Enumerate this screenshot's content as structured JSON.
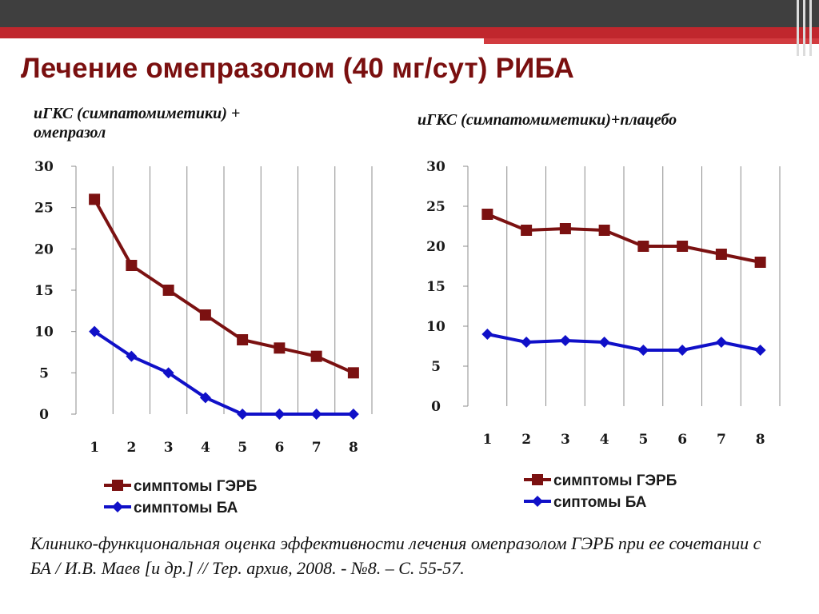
{
  "slide": {
    "title": "Лечение омепразолом (40 мг/сут) РИБА",
    "left_subtitle_line1": "иГКС (симпатомиметики) +",
    "left_subtitle_line2": "омепразол",
    "right_subtitle": "иГКС (симпатомиметики)+плацебо",
    "caption": "Клинико-функциональная оценка эффективности лечения омепразолом ГЭРБ при ее сочетании с БА / И.В. Маев [и др.] // Тер. архив, 2008. - №8. – С. 55-57."
  },
  "colors": {
    "gerd": "#7b1111",
    "asthma": "#1010c8",
    "title": "#7a0f0f",
    "topbar": "#3f3f3f",
    "redbar": "#c0272d",
    "grid": "#8c8c8c"
  },
  "chart_data": [
    {
      "type": "line",
      "x": [
        "1",
        "2",
        "3",
        "4",
        "5",
        "6",
        "7",
        "8"
      ],
      "yticks": [
        "0",
        "5",
        "10",
        "15",
        "20",
        "25",
        "30"
      ],
      "ylim": [
        0,
        30
      ],
      "grid": "vertical",
      "legend": "bottom",
      "series": [
        {
          "name": "симптомы ГЭРБ",
          "marker": "square",
          "values": [
            26,
            18,
            15,
            12,
            9,
            8,
            7,
            5
          ]
        },
        {
          "name": "симптомы БА",
          "marker": "diamond",
          "values": [
            10,
            7,
            5,
            2,
            0,
            0,
            0,
            0
          ]
        }
      ]
    },
    {
      "type": "line",
      "x": [
        "1",
        "2",
        "3",
        "4",
        "5",
        "6",
        "7",
        "8"
      ],
      "yticks": [
        "0",
        "5",
        "10",
        "15",
        "20",
        "25",
        "30"
      ],
      "ylim": [
        0,
        30
      ],
      "grid": "vertical",
      "legend": "bottom",
      "series": [
        {
          "name": "симптомы ГЭРБ",
          "marker": "square",
          "values": [
            24,
            22,
            22.2,
            22,
            20,
            20,
            19,
            18
          ]
        },
        {
          "name": "сиптомы БА",
          "marker": "diamond",
          "values": [
            9,
            8,
            8.2,
            8,
            7,
            7,
            8,
            7
          ]
        }
      ]
    }
  ]
}
